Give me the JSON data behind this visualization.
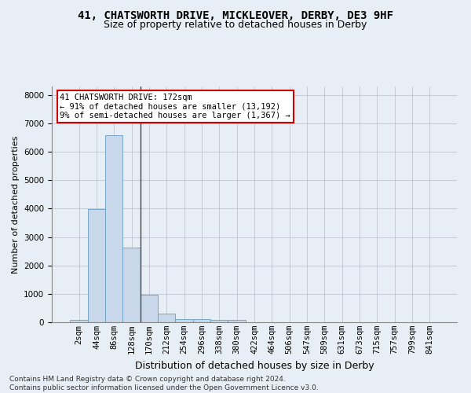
{
  "title_line1": "41, CHATSWORTH DRIVE, MICKLEOVER, DERBY, DE3 9HF",
  "title_line2": "Size of property relative to detached houses in Derby",
  "xlabel": "Distribution of detached houses by size in Derby",
  "ylabel": "Number of detached properties",
  "bar_labels": [
    "2sqm",
    "44sqm",
    "86sqm",
    "128sqm",
    "170sqm",
    "212sqm",
    "254sqm",
    "296sqm",
    "338sqm",
    "380sqm",
    "422sqm",
    "464sqm",
    "506sqm",
    "547sqm",
    "589sqm",
    "631sqm",
    "673sqm",
    "715sqm",
    "757sqm",
    "799sqm",
    "841sqm"
  ],
  "bar_values": [
    70,
    3980,
    6580,
    2620,
    960,
    310,
    120,
    115,
    90,
    80,
    0,
    0,
    0,
    0,
    0,
    0,
    0,
    0,
    0,
    0,
    0
  ],
  "bar_color": "#c8d8ea",
  "bar_edge_color": "#6a9fc0",
  "vline_x_index": 4,
  "vline_color": "#444444",
  "annotation_text": "41 CHATSWORTH DRIVE: 172sqm\n← 91% of detached houses are smaller (13,192)\n9% of semi-detached houses are larger (1,367) →",
  "annotation_box_color": "white",
  "annotation_box_edge_color": "#cc0000",
  "ylim": [
    0,
    8300
  ],
  "yticks": [
    0,
    1000,
    2000,
    3000,
    4000,
    5000,
    6000,
    7000,
    8000
  ],
  "grid_color": "#bbbbcc",
  "background_color": "#e8eef5",
  "footer_text": "Contains HM Land Registry data © Crown copyright and database right 2024.\nContains public sector information licensed under the Open Government Licence v3.0.",
  "title_fontsize": 10,
  "subtitle_fontsize": 9,
  "xlabel_fontsize": 9,
  "ylabel_fontsize": 8,
  "tick_fontsize": 7.5,
  "annotation_fontsize": 7.5,
  "footer_fontsize": 6.5
}
